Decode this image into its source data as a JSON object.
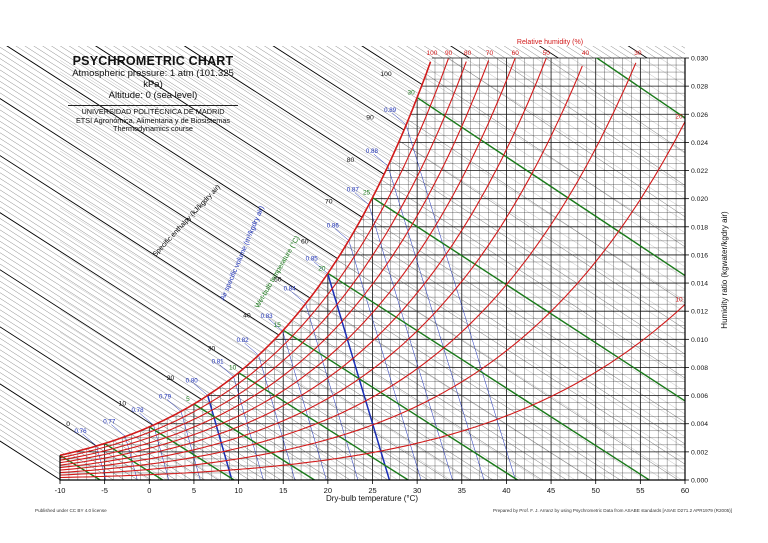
{
  "header": {
    "title": "PSYCHROMETRIC CHART",
    "pressure": "Atmospheric pressure: 1 atm (101.325 kPa)",
    "altitude": "Altitude: 0 (sea level)",
    "institution": "UNIVERSIDAD POLITÉCNICA DE MADRID",
    "school": "ETSI Agronómica, Alimentaria y de Biosistemas",
    "course": "Thermodynamics course"
  },
  "footer": {
    "license": "Published under CC BY 4.0 license",
    "credit": "Prepared by Prof. F. J. Arranz by using Psychrometric Data from ASABE standards [ASAE D271.2 APR1979 (R2005)]"
  },
  "colors": {
    "relative_humidity": "#d21a1a",
    "wet_bulb": "#1a7a1a",
    "specific_volume": "#1b2fb8",
    "grid": "#111111",
    "enthalpy": "#333333"
  },
  "chart_data": {
    "type": "line",
    "title": "PSYCHROMETRIC CHART",
    "xlabel": "Dry-bulb temperature (°C)",
    "ylabel": "Humidity ratio (kg_water/kg_dry air)",
    "ylabel_display": "Humidity ratio (kgwater/kgdry air)",
    "xlim": [
      -10,
      60
    ],
    "ylim": [
      0,
      0.03
    ],
    "x_ticks": [
      -10,
      -5,
      0,
      5,
      10,
      15,
      20,
      25,
      30,
      35,
      40,
      45,
      50,
      55,
      60
    ],
    "y_ticks": [
      0.0,
      0.002,
      0.004,
      0.006,
      0.008,
      0.01,
      0.012,
      0.014,
      0.016,
      0.018,
      0.02,
      0.022,
      0.024,
      0.026,
      0.028,
      0.03
    ],
    "y_tick_labels": [
      "0.000",
      "0.002",
      "0.004",
      "0.006",
      "0.008",
      "0.010",
      "0.012",
      "0.014",
      "0.016",
      "0.018",
      "0.020",
      "0.022",
      "0.024",
      "0.026",
      "0.028",
      "0.030"
    ],
    "pressure_kPa": 101.325,
    "relative_humidity": {
      "title": "Relative humidity (%)",
      "values_percent": [
        10,
        20,
        30,
        40,
        50,
        60,
        70,
        80,
        90,
        100
      ],
      "labels": [
        "10",
        "20",
        "30",
        "40",
        "50",
        "60",
        "70",
        "80",
        "90",
        "100"
      ]
    },
    "enthalpy": {
      "title": "Specific enthalpy (kJ/kg_dry air)",
      "title_display": "Specific enthalpy (kJ/kgdry air)",
      "labels": [
        "0",
        "10",
        "20",
        "30",
        "40",
        "50",
        "60",
        "70",
        "80",
        "90",
        "100"
      ]
    },
    "specific_volume": {
      "title": "Air specific volume (m³/kg_dry air)",
      "title_display": "Air specific volume (m³/kgdry air)",
      "labels": [
        "0.76",
        "0.77",
        "0.78",
        "0.79",
        "0.80",
        "0.81",
        "0.82",
        "0.83",
        "0.84",
        "0.85",
        "0.86",
        "0.87",
        "0.88",
        "0.89"
      ],
      "values": [
        0.76,
        0.77,
        0.78,
        0.79,
        0.8,
        0.81,
        0.82,
        0.83,
        0.84,
        0.85,
        0.86,
        0.87,
        0.88,
        0.89
      ]
    },
    "wet_bulb": {
      "title": "Wet-bulb temperature (°C)",
      "labels": [
        "5",
        "10",
        "15",
        "20",
        "25",
        "30"
      ],
      "values": [
        5,
        10,
        15,
        20,
        25,
        30
      ]
    },
    "grid": true
  }
}
